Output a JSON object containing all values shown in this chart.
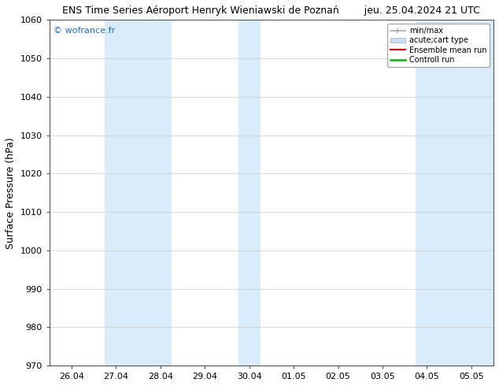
{
  "title": "ENS Time Series Aéroport Henryk Wieniawski de Poznań        jeu. 25.04.2024 21 UTC",
  "title_left": "ENS Time Series Aéroport Henryk Wieniawski de Poznań",
  "title_right": "jeu. 25.04.2024 21 UTC",
  "ylabel": "Surface Pressure (hPa)",
  "watermark": "© wofrance.fr",
  "watermark_color": "#1a6fc4",
  "ylim": [
    970,
    1060
  ],
  "yticks": [
    970,
    980,
    990,
    1000,
    1010,
    1020,
    1030,
    1040,
    1050,
    1060
  ],
  "xtick_labels": [
    "26.04",
    "27.04",
    "28.04",
    "29.04",
    "30.04",
    "01.05",
    "02.05",
    "03.05",
    "04.05",
    "05.05"
  ],
  "xtick_positions": [
    0,
    1,
    2,
    3,
    4,
    5,
    6,
    7,
    8,
    9
  ],
  "xlim": [
    -0.5,
    9.5
  ],
  "shade_bands": [
    {
      "x_start": 0.75,
      "x_end": 2.25
    },
    {
      "x_start": 3.75,
      "x_end": 4.25
    },
    {
      "x_start": 7.75,
      "x_end": 9.5
    }
  ],
  "shade_color": "#d9ecf9",
  "legend_labels": [
    "min/max",
    "acute;cart type",
    "Ensemble mean run",
    "Controll run"
  ],
  "bg_color": "#ffffff",
  "plot_bg_color": "#ffffff",
  "grid_color": "#cccccc",
  "title_fontsize": 9,
  "tick_fontsize": 8,
  "label_fontsize": 9
}
